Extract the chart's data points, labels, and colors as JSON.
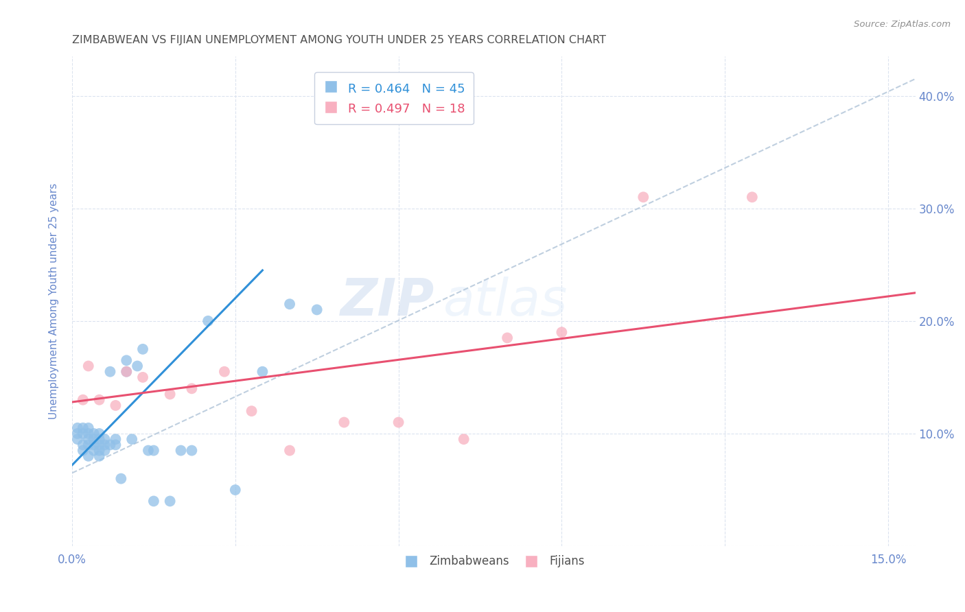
{
  "title": "ZIMBABWEAN VS FIJIAN UNEMPLOYMENT AMONG YOUTH UNDER 25 YEARS CORRELATION CHART",
  "source": "Source: ZipAtlas.com",
  "ylabel": "Unemployment Among Youth under 25 years",
  "xlim": [
    0.0,
    0.155
  ],
  "ylim": [
    0.0,
    0.435
  ],
  "zim_r": 0.464,
  "zim_n": 45,
  "fij_r": 0.497,
  "fij_n": 18,
  "zim_color": "#90c0e8",
  "fij_color": "#f8b0c0",
  "zim_line_color": "#3090d8",
  "fij_line_color": "#e85070",
  "diag_line_color": "#b0c4d8",
  "watermark_zip": "ZIP",
  "watermark_atlas": "atlas",
  "title_color": "#505050",
  "axis_label_color": "#6888cc",
  "tick_color": "#6888cc",
  "background_color": "#ffffff",
  "zim_x": [
    0.001,
    0.001,
    0.001,
    0.002,
    0.002,
    0.002,
    0.002,
    0.003,
    0.003,
    0.003,
    0.003,
    0.003,
    0.004,
    0.004,
    0.004,
    0.004,
    0.005,
    0.005,
    0.005,
    0.005,
    0.005,
    0.006,
    0.006,
    0.006,
    0.007,
    0.007,
    0.008,
    0.008,
    0.009,
    0.01,
    0.01,
    0.011,
    0.012,
    0.013,
    0.014,
    0.015,
    0.015,
    0.018,
    0.02,
    0.022,
    0.025,
    0.03,
    0.035,
    0.04,
    0.045
  ],
  "zim_y": [
    0.095,
    0.1,
    0.105,
    0.085,
    0.09,
    0.1,
    0.105,
    0.08,
    0.09,
    0.095,
    0.1,
    0.105,
    0.085,
    0.09,
    0.095,
    0.1,
    0.08,
    0.085,
    0.09,
    0.095,
    0.1,
    0.085,
    0.09,
    0.095,
    0.09,
    0.155,
    0.09,
    0.095,
    0.06,
    0.155,
    0.165,
    0.095,
    0.16,
    0.175,
    0.085,
    0.04,
    0.085,
    0.04,
    0.085,
    0.085,
    0.2,
    0.05,
    0.155,
    0.215,
    0.21
  ],
  "fij_x": [
    0.002,
    0.003,
    0.005,
    0.008,
    0.01,
    0.013,
    0.018,
    0.022,
    0.028,
    0.033,
    0.04,
    0.05,
    0.06,
    0.072,
    0.08,
    0.09,
    0.105,
    0.125
  ],
  "fij_y": [
    0.13,
    0.16,
    0.13,
    0.125,
    0.155,
    0.15,
    0.135,
    0.14,
    0.155,
    0.12,
    0.085,
    0.11,
    0.11,
    0.095,
    0.185,
    0.19,
    0.31,
    0.31
  ],
  "grid_color": "#d8e0ee",
  "legend_box_color": "#ffffff",
  "zim_trend_x0": 0.0,
  "zim_trend_y0": 0.072,
  "zim_trend_x1": 0.035,
  "zim_trend_y1": 0.245,
  "fij_trend_x0": 0.0,
  "fij_trend_y0": 0.128,
  "fij_trend_x1": 0.155,
  "fij_trend_y1": 0.225
}
